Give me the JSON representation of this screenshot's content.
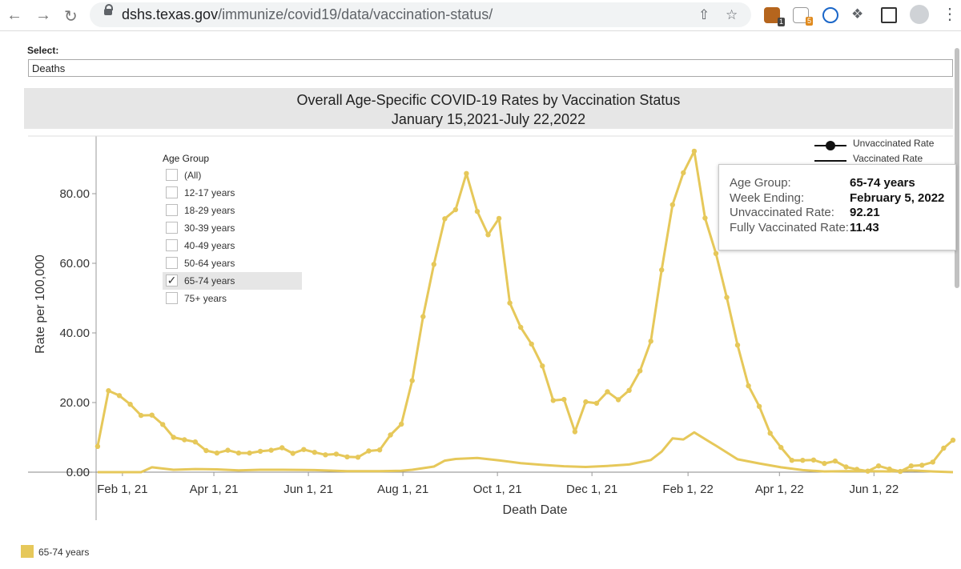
{
  "browser": {
    "url_host": "dshs.texas.gov",
    "url_path": "/immunize/covid19/data/vaccination-status/",
    "ext_badges": [
      "1",
      "5"
    ]
  },
  "select": {
    "label": "Select:",
    "value": "Deaths"
  },
  "legend_filter": {
    "title": "Age Group",
    "items": [
      {
        "label": "(All)",
        "checked": false
      },
      {
        "label": "12-17 years",
        "checked": false
      },
      {
        "label": "18-29 years",
        "checked": false
      },
      {
        "label": "30-39 years",
        "checked": false
      },
      {
        "label": "40-49 years",
        "checked": false
      },
      {
        "label": "50-64 years",
        "checked": false
      },
      {
        "label": "65-74 years",
        "checked": true
      },
      {
        "label": "75+ years",
        "checked": false
      }
    ]
  },
  "mark_legend": {
    "unvacc": "Unvaccinated Rate",
    "vacc": "Vaccinated Rate"
  },
  "tooltip": {
    "rows": [
      {
        "k": "Age Group:",
        "v": "65-74 years"
      },
      {
        "k": "Week Ending:",
        "v": "February 5, 2022"
      },
      {
        "k": "Unvaccinated Rate:",
        "v": "92.21"
      },
      {
        "k": "Fully Vaccinated Rate:",
        "v": "11.43"
      }
    ]
  },
  "color_legend": {
    "label": "65-74 years",
    "color": "#e6c85a"
  },
  "chart_data": {
    "type": "line",
    "title": "Overall Age-Specific COVID-19 Rates by Vaccination Status",
    "subtitle": "January 15,2021-July 22,2022",
    "xlabel": "Death Date",
    "ylabel": "Rate per 100,000",
    "x_ticks": [
      "Feb 1, 21",
      "Apr 1, 21",
      "Jun 1, 21",
      "Aug 1, 21",
      "Oct 1, 21",
      "Dec 1, 21",
      "Feb 1, 22",
      "Apr 1, 22",
      "Jun 1, 22"
    ],
    "y_ticks": [
      "0.00",
      "20.00",
      "40.00",
      "60.00",
      "80.00"
    ],
    "ylim": [
      0,
      100
    ],
    "grid": false,
    "color": "#e6c85a",
    "series": [
      {
        "name": "Unvaccinated Rate",
        "x": [
          "2021-01-16",
          "2021-01-23",
          "2021-01-30",
          "2021-02-06",
          "2021-02-13",
          "2021-02-20",
          "2021-02-27",
          "2021-03-06",
          "2021-03-13",
          "2021-03-20",
          "2021-03-27",
          "2021-04-03",
          "2021-04-10",
          "2021-04-17",
          "2021-04-24",
          "2021-05-01",
          "2021-05-08",
          "2021-05-15",
          "2021-05-22",
          "2021-05-29",
          "2021-06-05",
          "2021-06-12",
          "2021-06-19",
          "2021-06-26",
          "2021-07-03",
          "2021-07-10",
          "2021-07-17",
          "2021-07-24",
          "2021-07-31",
          "2021-08-07",
          "2021-08-14",
          "2021-08-21",
          "2021-08-28",
          "2021-09-04",
          "2021-09-11",
          "2021-09-18",
          "2021-09-25",
          "2021-10-02",
          "2021-10-09",
          "2021-10-16",
          "2021-10-23",
          "2021-10-30",
          "2021-11-06",
          "2021-11-13",
          "2021-11-20",
          "2021-11-27",
          "2021-12-04",
          "2021-12-11",
          "2021-12-18",
          "2021-12-25",
          "2022-01-01",
          "2022-01-08",
          "2022-01-15",
          "2022-01-22",
          "2022-01-29",
          "2022-02-05",
          "2022-02-12",
          "2022-02-19",
          "2022-02-26",
          "2022-03-05",
          "2022-03-12",
          "2022-03-19",
          "2022-03-26",
          "2022-04-02",
          "2022-04-09",
          "2022-04-16",
          "2022-04-23",
          "2022-04-30",
          "2022-05-07",
          "2022-05-14",
          "2022-05-21",
          "2022-05-28",
          "2022-06-04",
          "2022-06-11",
          "2022-06-18",
          "2022-06-25",
          "2022-07-02",
          "2022-07-09",
          "2022-07-16",
          "2022-07-22"
        ],
        "values": [
          7.4,
          23.4,
          22.0,
          19.5,
          16.3,
          16.4,
          13.7,
          10.0,
          9.3,
          8.7,
          6.2,
          5.5,
          6.3,
          5.5,
          5.5,
          6.0,
          6.3,
          7.0,
          5.4,
          6.5,
          5.7,
          5.0,
          5.2,
          4.4,
          4.3,
          6.1,
          6.4,
          10.7,
          13.8,
          26.3,
          44.7,
          59.7,
          72.8,
          75.4,
          85.8,
          74.9,
          68.2,
          72.9,
          48.6,
          41.6,
          36.8,
          30.5,
          20.6,
          20.9,
          11.6,
          20.2,
          19.8,
          23.1,
          20.8,
          23.5,
          29.1,
          37.6,
          58.1,
          76.8,
          86.0,
          92.21,
          73.0,
          62.8,
          50.2,
          36.5,
          24.8,
          18.9,
          11.2,
          7.1,
          3.4,
          3.4,
          3.5,
          2.5,
          3.2,
          1.5,
          0.8,
          0.3,
          1.8,
          0.9,
          0.2,
          1.8,
          2.0,
          2.9,
          6.9,
          9.2
        ]
      },
      {
        "name": "Vaccinated Rate",
        "x": [
          "2021-01-16",
          "2021-01-23",
          "2021-01-30",
          "2021-02-06",
          "2021-02-13",
          "2021-02-20",
          "2021-03-06",
          "2021-03-20",
          "2021-04-03",
          "2021-04-17",
          "2021-05-01",
          "2021-05-15",
          "2021-06-05",
          "2021-06-26",
          "2021-07-17",
          "2021-07-31",
          "2021-08-07",
          "2021-08-21",
          "2021-08-28",
          "2021-09-04",
          "2021-09-18",
          "2021-10-02",
          "2021-10-16",
          "2021-10-30",
          "2021-11-13",
          "2021-11-27",
          "2021-12-11",
          "2021-12-25",
          "2022-01-08",
          "2022-01-15",
          "2022-01-22",
          "2022-01-29",
          "2022-02-05",
          "2022-02-19",
          "2022-03-05",
          "2022-03-19",
          "2022-04-02",
          "2022-04-16",
          "2022-04-30",
          "2022-05-14",
          "2022-05-28",
          "2022-06-11",
          "2022-06-25",
          "2022-07-09",
          "2022-07-22"
        ],
        "values": [
          0.0,
          0.0,
          0.0,
          0.0,
          0.0,
          1.4,
          0.7,
          0.9,
          0.8,
          0.5,
          0.7,
          0.7,
          0.6,
          0.3,
          0.3,
          0.4,
          0.7,
          1.6,
          3.3,
          3.8,
          4.1,
          3.4,
          2.6,
          2.1,
          1.7,
          1.5,
          1.8,
          2.2,
          3.5,
          5.9,
          9.7,
          9.4,
          11.43,
          7.6,
          3.7,
          2.5,
          1.4,
          0.6,
          0.2,
          0.3,
          0.3,
          0.2,
          0.5,
          0.2,
          0.0
        ]
      }
    ]
  }
}
